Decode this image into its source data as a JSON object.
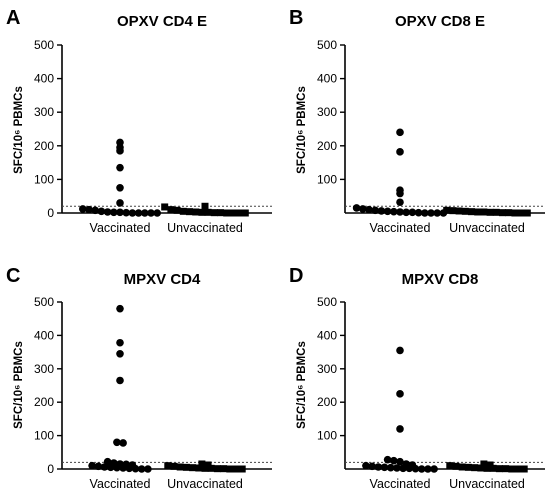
{
  "chart_data": [
    {
      "type": "scatter",
      "panel_letter": "A",
      "title": "OPXV CD4 E",
      "ylabel": "SFC/10⁶ PBMCs",
      "ylim": [
        0,
        500
      ],
      "yticks": [
        0,
        100,
        200,
        300,
        400,
        500
      ],
      "threshold": 20,
      "categories": [
        "Vaccinated",
        "Unvaccinated"
      ],
      "series": [
        {
          "category": "Vaccinated",
          "marker": "circle",
          "values": [
            210,
            195,
            185,
            135,
            75,
            30,
            12,
            10,
            8,
            5,
            3,
            2,
            2,
            1,
            0,
            0,
            0,
            0,
            0
          ]
        },
        {
          "category": "Unvaccinated",
          "marker": "square",
          "values": [
            20,
            18,
            10,
            8,
            5,
            4,
            3,
            2,
            2,
            1,
            1,
            0,
            0,
            0,
            0
          ]
        }
      ]
    },
    {
      "type": "scatter",
      "panel_letter": "B",
      "title": "OPXV CD8 E",
      "ylabel": "SFC/10⁶ PBMCs",
      "ylim": [
        0,
        500
      ],
      "yticks": [
        100,
        200,
        300,
        400,
        500
      ],
      "threshold": 20,
      "categories": [
        "Vaccinated",
        "Unvaccinated"
      ],
      "series": [
        {
          "category": "Vaccinated",
          "marker": "circle",
          "values": [
            240,
            182,
            68,
            58,
            32,
            15,
            12,
            10,
            8,
            6,
            5,
            4,
            3,
            2,
            2,
            1,
            0,
            0,
            0,
            0
          ]
        },
        {
          "category": "Unvaccinated",
          "marker": "square",
          "values": [
            8,
            7,
            6,
            5,
            4,
            3,
            3,
            2,
            2,
            1,
            1,
            0,
            0,
            0
          ]
        }
      ]
    },
    {
      "type": "scatter",
      "panel_letter": "C",
      "title": "MPXV CD4",
      "ylabel": "SFC/10⁶ PBMCs",
      "ylim": [
        0,
        500
      ],
      "yticks": [
        0,
        100,
        200,
        300,
        400,
        500
      ],
      "threshold": 20,
      "categories": [
        "Vaccinated",
        "Unvaccinated"
      ],
      "series": [
        {
          "category": "Vaccinated",
          "marker": "circle",
          "values": [
            480,
            378,
            345,
            265,
            80,
            78,
            22,
            18,
            15,
            14,
            12,
            10,
            8,
            6,
            5,
            4,
            3,
            2,
            1,
            0,
            0
          ]
        },
        {
          "category": "Unvaccinated",
          "marker": "square",
          "values": [
            15,
            12,
            10,
            8,
            6,
            5,
            4,
            3,
            2,
            2,
            1,
            1,
            0,
            0,
            0
          ]
        }
      ]
    },
    {
      "type": "scatter",
      "panel_letter": "D",
      "title": "MPXV CD8",
      "ylabel": "SFC/10⁶ PBMCs",
      "ylim": [
        0,
        500
      ],
      "yticks": [
        100,
        200,
        300,
        400,
        500
      ],
      "threshold": 20,
      "categories": [
        "Vaccinated",
        "Unvaccinated"
      ],
      "series": [
        {
          "category": "Vaccinated",
          "marker": "circle",
          "values": [
            355,
            225,
            120,
            28,
            25,
            22,
            15,
            12,
            10,
            8,
            6,
            5,
            4,
            3,
            2,
            2,
            1,
            0,
            0,
            0
          ]
        },
        {
          "category": "Unvaccinated",
          "marker": "square",
          "values": [
            15,
            12,
            10,
            8,
            6,
            5,
            4,
            3,
            2,
            2,
            1,
            1,
            0,
            0,
            0
          ]
        }
      ]
    }
  ]
}
